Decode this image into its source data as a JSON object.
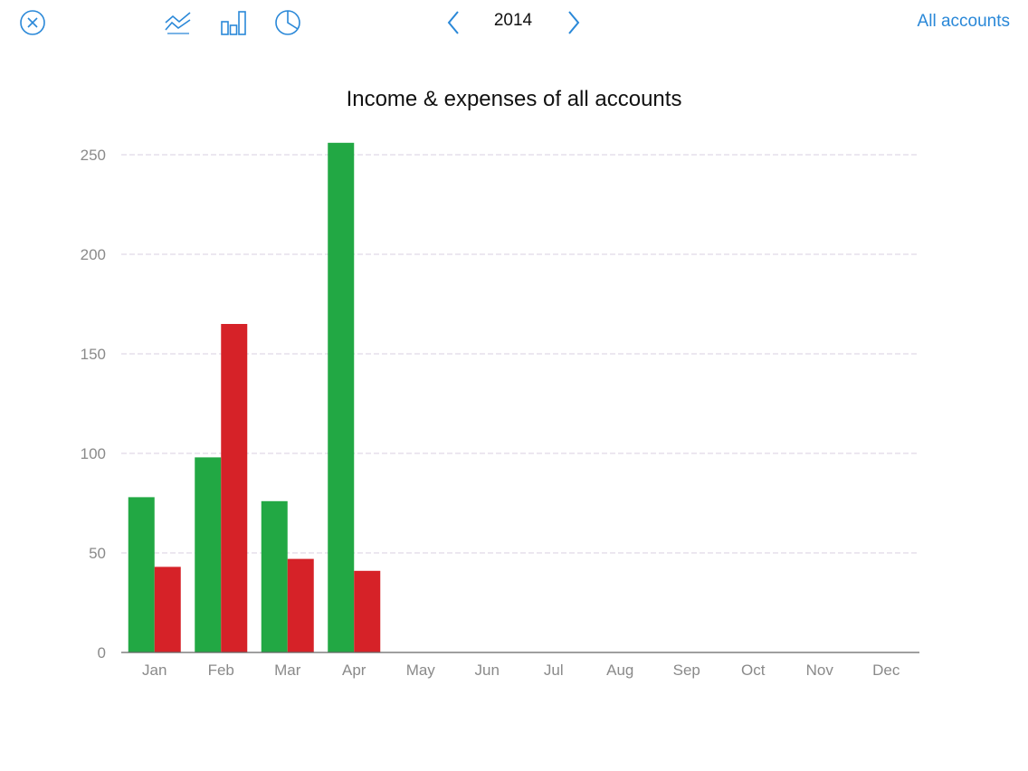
{
  "toolbar": {
    "close_icon": "close-circle-icon",
    "line_chart_icon": "line-chart-icon",
    "bar_chart_icon": "bar-chart-icon",
    "pie_chart_icon": "pie-chart-icon",
    "prev_icon": "chevron-left-icon",
    "next_icon": "chevron-right-icon",
    "year": "2014",
    "accounts_label": "All accounts",
    "accent_color": "#2a88d8"
  },
  "chart_data": {
    "type": "bar",
    "title": "Income & expenses of all accounts",
    "categories": [
      "Jan",
      "Feb",
      "Mar",
      "Apr",
      "May",
      "Jun",
      "Jul",
      "Aug",
      "Sep",
      "Oct",
      "Nov",
      "Dec"
    ],
    "series": [
      {
        "values": [
          78,
          98,
          76,
          256,
          0,
          0,
          0,
          0,
          0,
          0,
          0,
          0
        ],
        "color": "#22a844"
      },
      {
        "values": [
          43,
          165,
          47,
          41,
          0,
          0,
          0,
          0,
          0,
          0,
          0,
          0
        ],
        "color": "#d62228"
      }
    ],
    "ylim": [
      0,
      260
    ],
    "yticks": [
      0,
      50,
      100,
      150,
      200,
      250
    ],
    "grid": true,
    "grid_color": "#d8cfe0"
  }
}
